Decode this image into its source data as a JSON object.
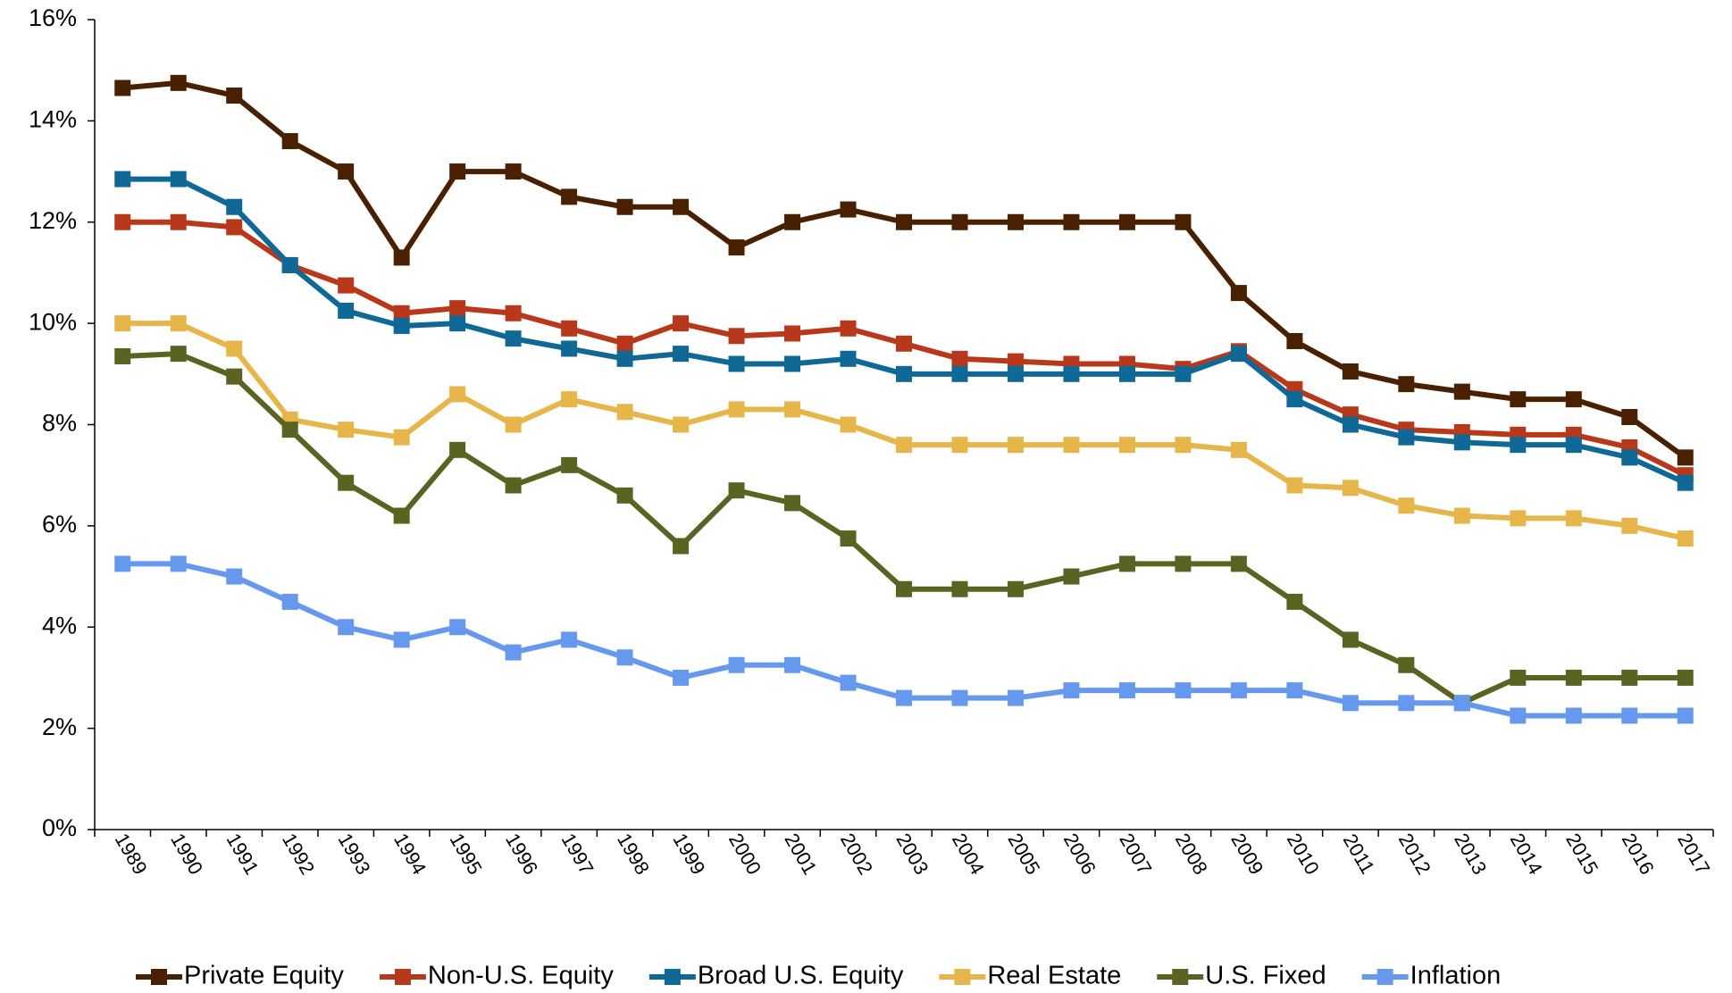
{
  "chart_data": {
    "type": "line",
    "categories": [
      "1989",
      "1990",
      "1991",
      "1992",
      "1993",
      "1994",
      "1995",
      "1996",
      "1997",
      "1998",
      "1999",
      "2000",
      "2001",
      "2002",
      "2003",
      "2004",
      "2005",
      "2006",
      "2007",
      "2008",
      "2009",
      "2010",
      "2011",
      "2012",
      "2013",
      "2014",
      "2015",
      "2016",
      "2017"
    ],
    "series": [
      {
        "name": "Private Equity",
        "color": "#4a2100",
        "values": [
          14.65,
          14.75,
          14.5,
          13.6,
          13.0,
          11.3,
          13.0,
          13.0,
          12.5,
          12.3,
          12.3,
          11.5,
          12.0,
          12.25,
          12.0,
          12.0,
          12.0,
          12.0,
          12.0,
          12.0,
          10.6,
          9.65,
          9.05,
          8.8,
          8.65,
          8.5,
          8.5,
          8.15,
          7.35
        ]
      },
      {
        "name": "Non-U.S. Equity",
        "color": "#b8381c",
        "values": [
          12.0,
          12.0,
          11.9,
          11.15,
          10.75,
          10.2,
          10.3,
          10.2,
          9.9,
          9.6,
          10.0,
          9.75,
          9.8,
          9.9,
          9.6,
          9.3,
          9.25,
          9.2,
          9.2,
          9.1,
          9.45,
          8.7,
          8.2,
          7.9,
          7.85,
          7.8,
          7.8,
          7.55,
          7.0
        ]
      },
      {
        "name": "Broad U.S. Equity",
        "color": "#0f6896",
        "values": [
          12.85,
          12.85,
          12.3,
          11.15,
          10.25,
          9.95,
          10.0,
          9.7,
          9.5,
          9.3,
          9.4,
          9.2,
          9.2,
          9.3,
          9.0,
          9.0,
          9.0,
          9.0,
          9.0,
          9.0,
          9.4,
          8.5,
          8.0,
          7.75,
          7.65,
          7.6,
          7.6,
          7.35,
          6.85
        ]
      },
      {
        "name": "Real Estate",
        "color": "#e6b64a",
        "values": [
          10.0,
          10.0,
          9.5,
          8.1,
          7.9,
          7.75,
          8.6,
          8.0,
          8.5,
          8.25,
          8.0,
          8.3,
          8.3,
          8.0,
          7.6,
          7.6,
          7.6,
          7.6,
          7.6,
          7.6,
          7.5,
          6.8,
          6.75,
          6.4,
          6.2,
          6.15,
          6.15,
          6.0,
          5.75
        ]
      },
      {
        "name": "U.S. Fixed",
        "color": "#5a6322",
        "values": [
          9.35,
          9.4,
          8.95,
          7.9,
          6.85,
          6.2,
          7.5,
          6.8,
          7.2,
          6.6,
          5.6,
          6.7,
          6.45,
          5.75,
          4.75,
          4.75,
          4.75,
          5.0,
          5.25,
          5.25,
          5.25,
          4.5,
          3.75,
          3.25,
          2.5,
          3.0,
          3.0,
          3.0,
          3.0
        ]
      },
      {
        "name": "Inflation",
        "color": "#6699ee",
        "values": [
          5.25,
          5.25,
          5.0,
          4.5,
          4.0,
          3.75,
          4.0,
          3.5,
          3.75,
          3.4,
          3.0,
          3.25,
          3.25,
          2.9,
          2.6,
          2.6,
          2.6,
          2.75,
          2.75,
          2.75,
          2.75,
          2.75,
          2.5,
          2.5,
          2.5,
          2.25,
          2.25,
          2.25,
          2.25
        ]
      }
    ],
    "ylim": [
      0,
      16
    ],
    "yticks": [
      {
        "value": 0,
        "label": "0%"
      },
      {
        "value": 2,
        "label": "2%"
      },
      {
        "value": 4,
        "label": "4%"
      },
      {
        "value": 6,
        "label": "6%"
      },
      {
        "value": 8,
        "label": "8%"
      },
      {
        "value": 10,
        "label": "10%"
      },
      {
        "value": 12,
        "label": "12%"
      },
      {
        "value": 14,
        "label": "14%"
      },
      {
        "value": 16,
        "label": "16%"
      }
    ],
    "legend": "bottom"
  }
}
